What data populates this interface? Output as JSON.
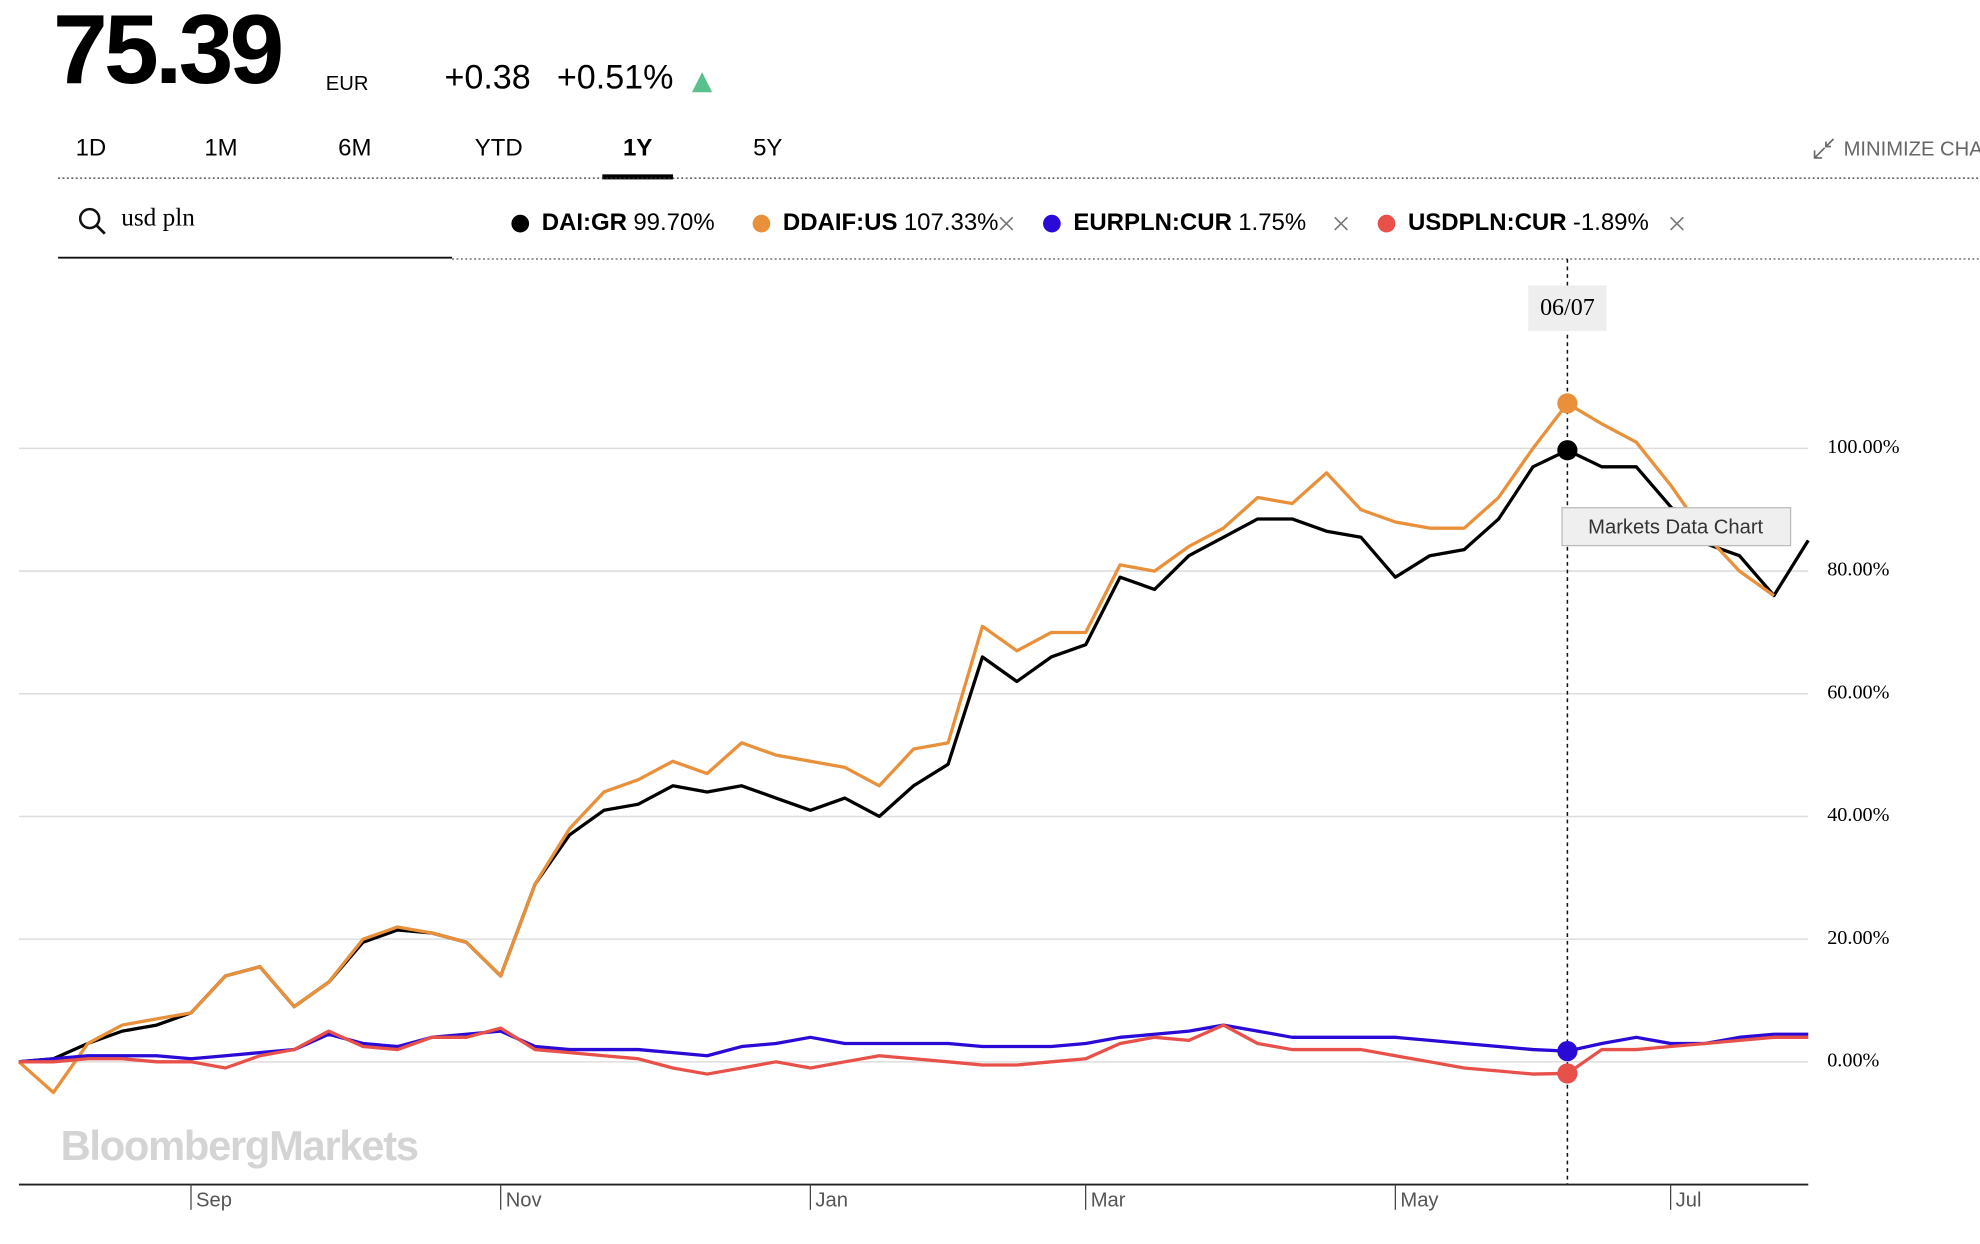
{
  "header": {
    "price": "75.39",
    "currency": "EUR",
    "change": "+0.38",
    "change_pct": "+0.51%",
    "tabs": [
      "1D",
      "1M",
      "6M",
      "YTD",
      "1Y",
      "5Y"
    ],
    "active_tab": 4,
    "minimize": "MINIMIZE CHA",
    "search": "usd pln",
    "tooltip_date": "06/07",
    "hover_hint": "Markets Data Chart",
    "watermark": "BloombergMarkets"
  },
  "chart_data": {
    "type": "line",
    "categories": [
      null,
      null,
      null,
      null,
      null,
      "Sep",
      null,
      null,
      null,
      null,
      null,
      null,
      null,
      null,
      "Nov",
      null,
      null,
      null,
      null,
      null,
      null,
      null,
      null,
      "Jan",
      null,
      null,
      null,
      null,
      null,
      null,
      null,
      "Mar",
      null,
      null,
      null,
      null,
      null,
      null,
      null,
      null,
      "May",
      null,
      null,
      null,
      null,
      null,
      null,
      null,
      "Jul",
      null,
      null,
      null,
      null
    ],
    "series": [
      {
        "name": "DAI:GR",
        "legend_label": "99.70%",
        "color": "#000000",
        "values": [
          0,
          0.5,
          3,
          5,
          6,
          8,
          14,
          15.5,
          9,
          13,
          19.5,
          21.5,
          21,
          19.5,
          14,
          29,
          37,
          41,
          42,
          45,
          44,
          45,
          43,
          41,
          43,
          40,
          45,
          48.5,
          66,
          62,
          66,
          68,
          79,
          77,
          82.5,
          85.5,
          88.5,
          88.5,
          86.5,
          85.5,
          79,
          82.5,
          83.5,
          88.5,
          97,
          99.7,
          97,
          97,
          90.5,
          84.5,
          82.5,
          76,
          85
        ]
      },
      {
        "name": "DDAIF:US",
        "legend_label": "107.33%",
        "color": "#e8913a",
        "values": [
          0,
          -5,
          3,
          6,
          7,
          8,
          14,
          15.5,
          9,
          13,
          20,
          22,
          21,
          19.5,
          14,
          29,
          38,
          44,
          46,
          49,
          47,
          52,
          50,
          49,
          48,
          45,
          51,
          52,
          71,
          67,
          70,
          70,
          81,
          80,
          84,
          87,
          92,
          91,
          96,
          90,
          88,
          87,
          87,
          92,
          100,
          107.33,
          104,
          101,
          94,
          86,
          80,
          76,
          null
        ]
      },
      {
        "name": "EURPLN:CUR",
        "legend_label": "1.75%",
        "color": "#2a0ad6",
        "values": [
          0,
          0.5,
          1,
          1,
          1,
          0.5,
          1,
          1.5,
          2,
          4.5,
          3,
          2.5,
          4,
          4.5,
          5,
          2.5,
          2,
          2,
          2,
          1.5,
          1,
          2.5,
          3,
          4,
          3,
          3,
          3,
          3,
          2.5,
          2.5,
          2.5,
          3,
          4,
          4.5,
          5,
          6,
          5,
          4,
          4,
          4,
          4,
          3.5,
          3,
          2.5,
          2,
          1.75,
          3,
          4,
          3,
          3,
          4,
          4.5,
          4.5
        ]
      },
      {
        "name": "USDPLN:CUR",
        "legend_label": "-1.89%",
        "color": "#e8504a",
        "values": [
          0,
          0,
          0.5,
          0.5,
          0,
          0,
          -1,
          1,
          2,
          5,
          2.5,
          2,
          4,
          4,
          5.5,
          2,
          1.5,
          1,
          0.5,
          -1,
          -2,
          -1,
          0,
          -1,
          0,
          1,
          0.5,
          0,
          -0.5,
          -0.5,
          0,
          0.5,
          3,
          4,
          3.5,
          6,
          3,
          2,
          2,
          2,
          1,
          0,
          -1,
          -1.5,
          -2,
          -1.89,
          2,
          2,
          2.5,
          3,
          3.5,
          4,
          4
        ]
      }
    ],
    "highlight_index": 45,
    "ylim": [
      -20,
      130
    ],
    "yticks": [
      {
        "value": 0,
        "label": "0.00%"
      },
      {
        "value": 20,
        "label": "20.00%"
      },
      {
        "value": 40,
        "label": "40.00%"
      },
      {
        "value": 60,
        "label": "60.00%"
      },
      {
        "value": 80,
        "label": "80.00%"
      },
      {
        "value": 100,
        "label": "100.00%"
      }
    ],
    "grid": true
  }
}
